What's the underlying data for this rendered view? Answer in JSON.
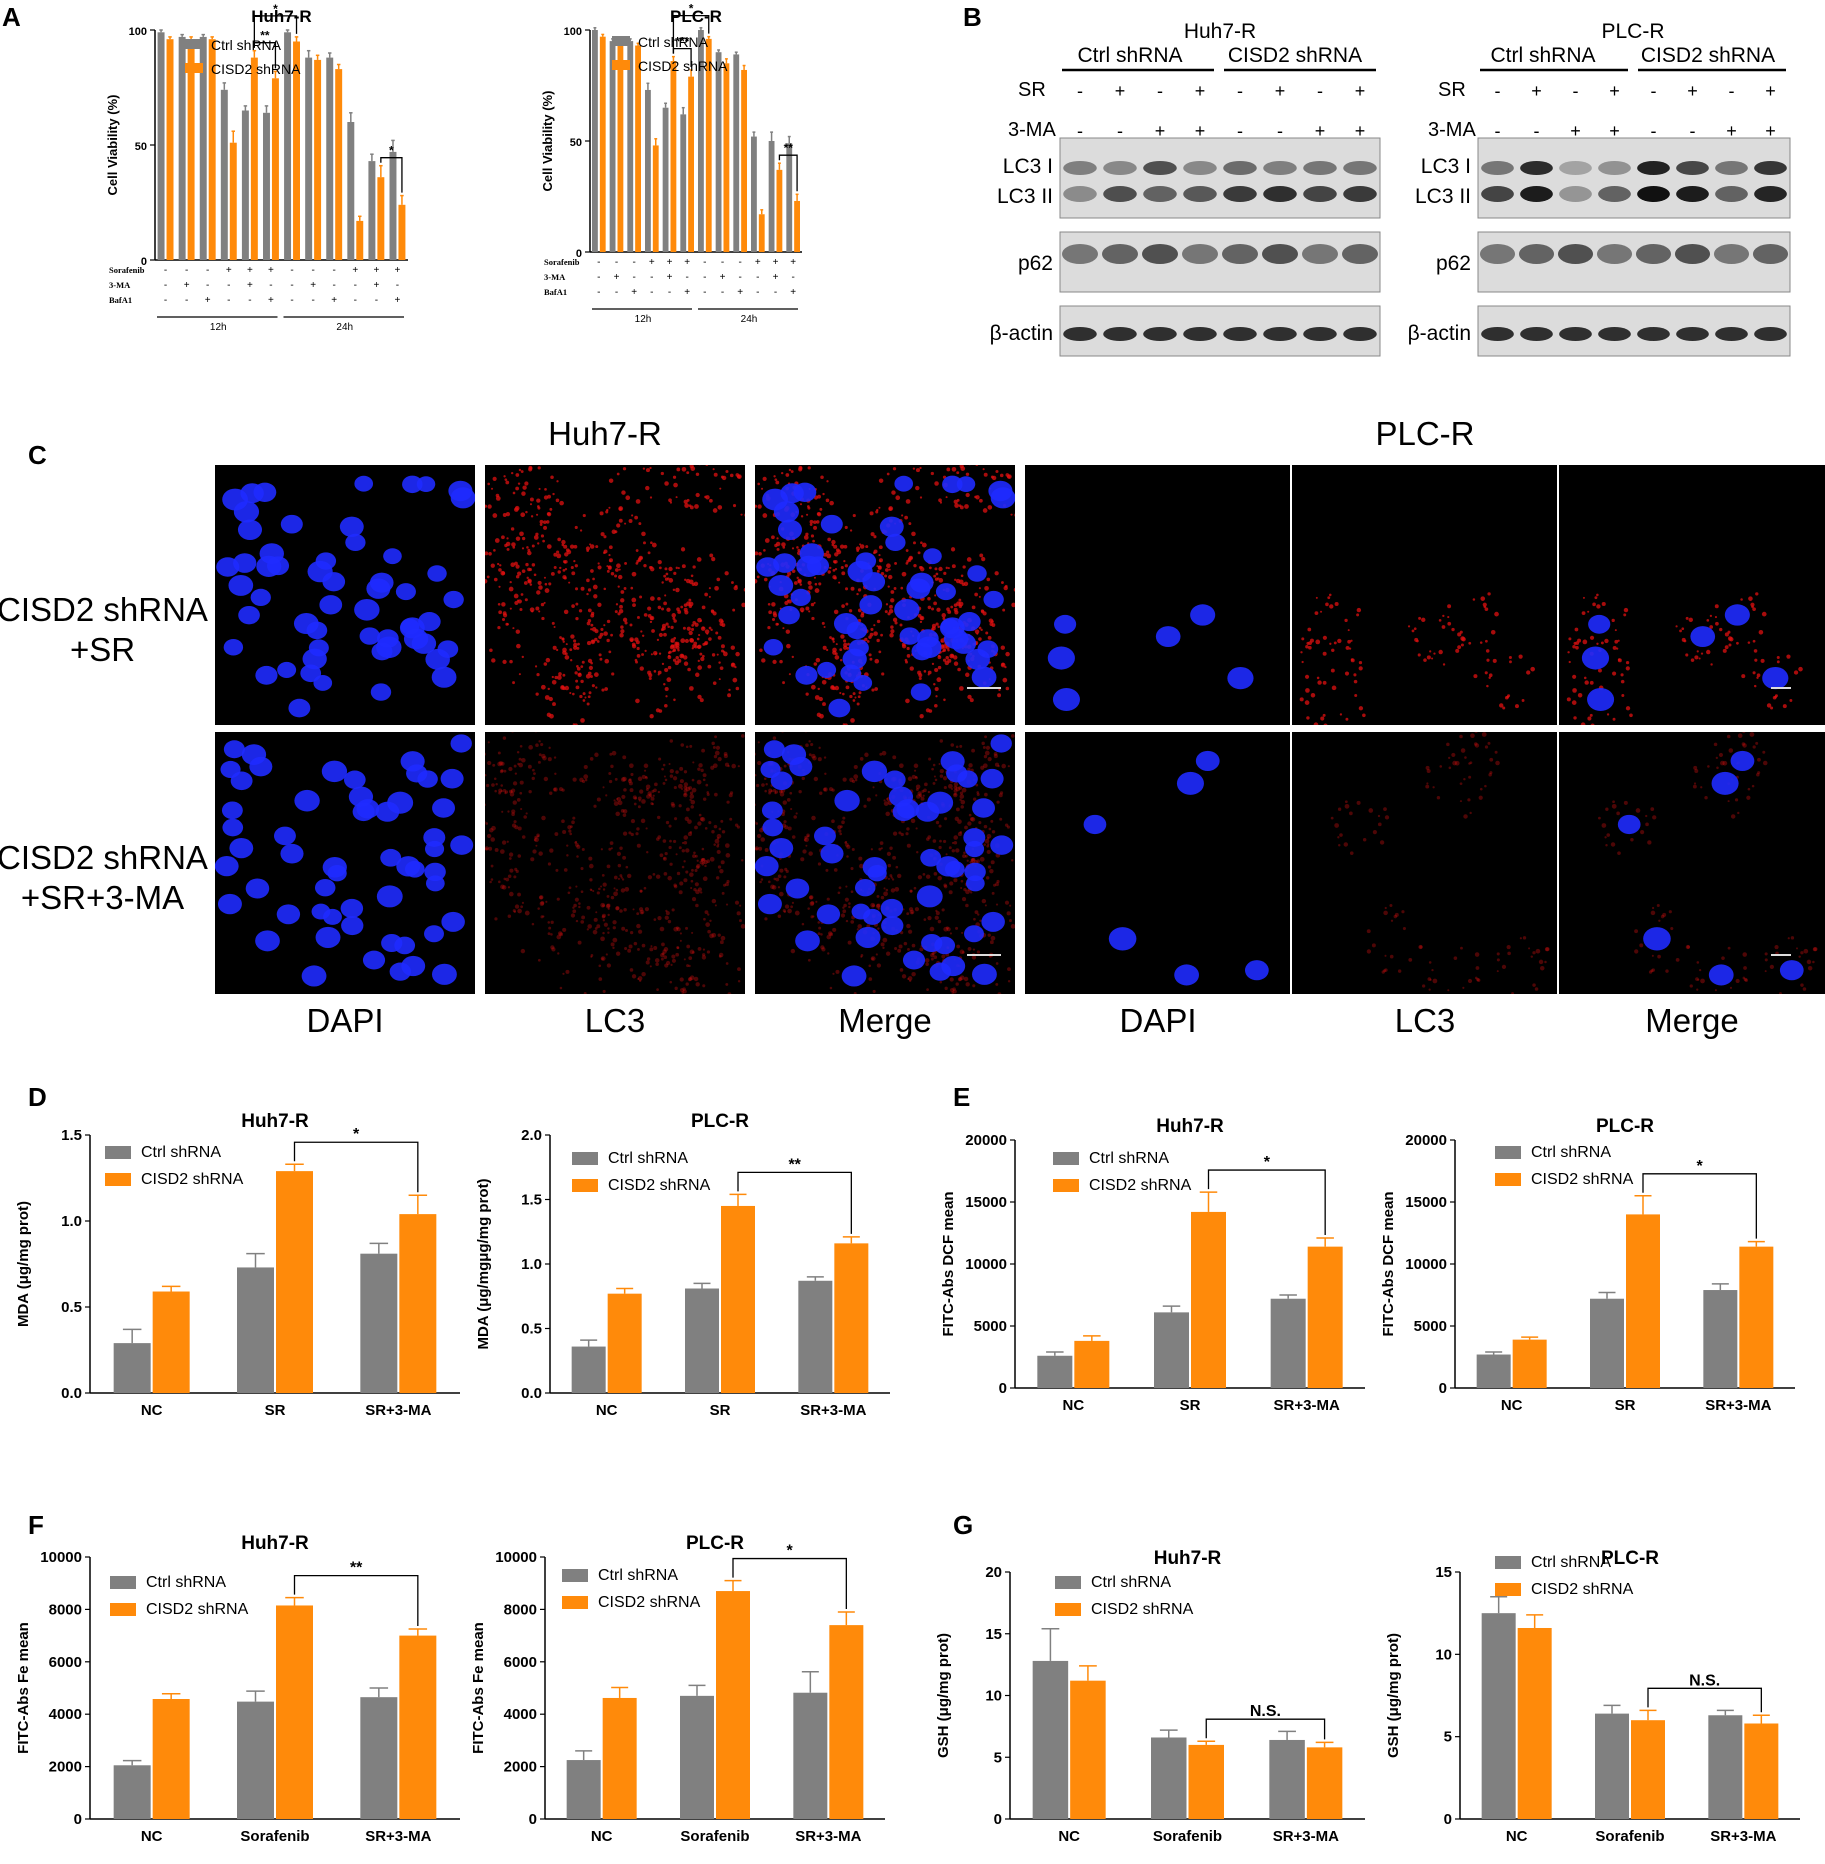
{
  "colors": {
    "ctrl": "#808080",
    "cisd2": "#ff8a0a",
    "dapi": "#1f2bff",
    "lc3": "#e01010"
  },
  "panel_letters": [
    "A",
    "B",
    "C",
    "D",
    "E",
    "F",
    "G"
  ],
  "panel_B": {
    "left_title": "Huh7-R",
    "right_title": "PLC-R",
    "group_labels": [
      "Ctrl shRNA",
      "CISD2 shRNA"
    ],
    "row_labels": [
      "SR",
      "3-MA"
    ],
    "sr_signs": [
      "-",
      "+",
      "-",
      "+",
      "-",
      "+",
      "-",
      "+"
    ],
    "ma_signs": [
      "-",
      "-",
      "+",
      "+",
      "-",
      "-",
      "+",
      "+"
    ],
    "blot_labels": [
      "LC3 I",
      "LC3 II",
      "p62",
      "β-actin"
    ]
  },
  "panel_C": {
    "titles": [
      "Huh7-R",
      "PLC-R"
    ],
    "row_labels": [
      [
        "CISD2 shRNA",
        "+SR"
      ],
      [
        "CISD2 shRNA",
        "+SR+3-MA"
      ]
    ],
    "col_labels": [
      "DAPI",
      "LC3",
      "Merge",
      "DAPI",
      "LC3",
      "Merge"
    ]
  },
  "chart_data": [
    {
      "panel": "A",
      "type": "bar",
      "title": "Huh7-R",
      "ylabel": "Cell Viability (%)",
      "ylim": [
        0,
        100
      ],
      "yticks": [
        0,
        50,
        100
      ],
      "legend": [
        "Ctrl shRNA",
        "CISD2 shRNA"
      ],
      "condition_rows": {
        "labels": [
          "Sorafenib",
          "3-MA",
          "BafA1"
        ],
        "signs": [
          [
            "-",
            "-",
            "-",
            "+",
            "+",
            "+",
            "-",
            "-",
            "-",
            "+",
            "+",
            "+"
          ],
          [
            "-",
            "+",
            "-",
            "-",
            "+",
            "-",
            "-",
            "+",
            "-",
            "-",
            "+",
            "-"
          ],
          [
            "-",
            "-",
            "+",
            "-",
            "-",
            "+",
            "-",
            "-",
            "+",
            "-",
            "-",
            "+"
          ]
        ]
      },
      "time_labels": [
        "12h",
        "24h"
      ],
      "series": [
        {
          "name": "Ctrl shRNA",
          "values": [
            99,
            97,
            97,
            74,
            65,
            64,
            99,
            88,
            88,
            60,
            43,
            47
          ],
          "errors": [
            1,
            1,
            1,
            3,
            2,
            3,
            1,
            3,
            2,
            4,
            3,
            5
          ]
        },
        {
          "name": "CISD2 shRNA",
          "values": [
            96,
            96,
            96,
            51,
            88,
            79,
            95,
            87,
            83,
            17,
            36,
            24
          ],
          "errors": [
            1,
            1,
            1,
            5,
            3,
            3,
            2,
            2,
            2,
            2,
            5,
            4
          ]
        }
      ],
      "significance": [
        {
          "a": 4,
          "b": 5,
          "series": 1,
          "label": "**"
        },
        {
          "a": 4,
          "b": 6,
          "series": 1,
          "label": "*"
        },
        {
          "a": 10,
          "b": 11,
          "series": 1,
          "label": "*"
        }
      ]
    },
    {
      "panel": "A",
      "type": "bar",
      "title": "PLC-R",
      "ylabel": "Cell Viability (%)",
      "ylim": [
        0,
        100
      ],
      "yticks": [
        0,
        50,
        100
      ],
      "legend": [
        "Ctrl shRNA",
        "CISD2 shRNA"
      ],
      "condition_rows": {
        "labels": [
          "Sorafenib",
          "3-MA",
          "BafA1"
        ],
        "signs": [
          [
            "-",
            "-",
            "-",
            "+",
            "+",
            "+",
            "-",
            "-",
            "-",
            "+",
            "+",
            "+"
          ],
          [
            "-",
            "+",
            "-",
            "-",
            "+",
            "-",
            "-",
            "+",
            "-",
            "-",
            "+",
            "-"
          ],
          [
            "-",
            "-",
            "+",
            "-",
            "-",
            "+",
            "-",
            "-",
            "+",
            "-",
            "-",
            "+"
          ]
        ]
      },
      "time_labels": [
        "12h",
        "24h"
      ],
      "series": [
        {
          "name": "Ctrl shRNA",
          "values": [
            100,
            95,
            95,
            73,
            65,
            62,
            100,
            90,
            89,
            52,
            50,
            49
          ],
          "errors": [
            1,
            1,
            1,
            3,
            2,
            3,
            1,
            1,
            1,
            2,
            4,
            3
          ]
        },
        {
          "name": "CISD2 shRNA",
          "values": [
            97,
            95,
            93,
            48,
            86,
            79,
            96,
            85,
            82,
            17,
            37,
            23
          ],
          "errors": [
            1,
            1,
            1,
            3,
            2,
            3,
            1,
            2,
            2,
            2,
            3,
            3
          ]
        }
      ],
      "significance": [
        {
          "a": 4,
          "b": 5,
          "series": 1,
          "label": "***"
        },
        {
          "a": 4,
          "b": 6,
          "series": 1,
          "label": "*"
        },
        {
          "a": 10,
          "b": 11,
          "series": 1,
          "label": "**"
        }
      ]
    },
    {
      "panel": "D",
      "type": "bar",
      "title": "Huh7-R",
      "ylabel": "MDA (μg/mg prot)",
      "ylim": [
        0,
        1.5
      ],
      "yticks": [
        "0.0",
        "0.5",
        "1.0",
        "1.5"
      ],
      "categories": [
        "NC",
        "SR",
        "SR+3-MA"
      ],
      "legend": [
        "Ctrl shRNA",
        "CISD2 shRNA"
      ],
      "series": [
        {
          "name": "Ctrl shRNA",
          "values": [
            0.29,
            0.73,
            0.81
          ],
          "errors": [
            0.08,
            0.08,
            0.06
          ]
        },
        {
          "name": "CISD2 shRNA",
          "values": [
            0.59,
            1.29,
            1.04
          ],
          "errors": [
            0.03,
            0.04,
            0.11
          ]
        }
      ],
      "significance": [
        {
          "a": 1,
          "b": 2,
          "label": "*"
        }
      ]
    },
    {
      "panel": "D",
      "type": "bar",
      "title": "PLC-R",
      "ylabel": "MDA (μg/mgμg/mg prot)",
      "ylim": [
        0,
        2.0
      ],
      "yticks": [
        "0.0",
        "0.5",
        "1.0",
        "1.5",
        "2.0"
      ],
      "categories": [
        "NC",
        "SR",
        "SR+3-MA"
      ],
      "legend": [
        "Ctrl shRNA",
        "CISD2 shRNA"
      ],
      "series": [
        {
          "name": "Ctrl shRNA",
          "values": [
            0.36,
            0.81,
            0.87
          ],
          "errors": [
            0.05,
            0.04,
            0.03
          ]
        },
        {
          "name": "CISD2 shRNA",
          "values": [
            0.77,
            1.45,
            1.16
          ],
          "errors": [
            0.04,
            0.09,
            0.05
          ]
        }
      ],
      "significance": [
        {
          "a": 1,
          "b": 2,
          "label": "**"
        }
      ]
    },
    {
      "panel": "E",
      "type": "bar",
      "title": "Huh7-R",
      "ylabel": "FITC-Abs DCF mean",
      "ylim": [
        0,
        20000
      ],
      "yticks": [
        "0",
        "5000",
        "10000",
        "15000",
        "20000"
      ],
      "categories": [
        "NC",
        "SR",
        "SR+3-MA"
      ],
      "legend": [
        "Ctrl shRNA",
        "CISD2 shRNA"
      ],
      "series": [
        {
          "name": "Ctrl shRNA",
          "values": [
            2600,
            6100,
            7200
          ],
          "errors": [
            300,
            500,
            300
          ]
        },
        {
          "name": "CISD2 shRNA",
          "values": [
            3800,
            14200,
            11400
          ],
          "errors": [
            400,
            1600,
            700
          ]
        }
      ],
      "significance": [
        {
          "a": 1,
          "b": 2,
          "label": "*"
        }
      ]
    },
    {
      "panel": "E",
      "type": "bar",
      "title": "PLC-R",
      "ylabel": "FITC-Abs DCF mean",
      "ylim": [
        0,
        20000
      ],
      "yticks": [
        "0",
        "5000",
        "10000",
        "15000",
        "20000"
      ],
      "categories": [
        "NC",
        "SR",
        "SR+3-MA"
      ],
      "legend": [
        "Ctrl shRNA",
        "CISD2 shRNA"
      ],
      "series": [
        {
          "name": "Ctrl shRNA",
          "values": [
            2700,
            7200,
            7900
          ],
          "errors": [
            200,
            500,
            500
          ]
        },
        {
          "name": "CISD2 shRNA",
          "values": [
            3900,
            14000,
            11400
          ],
          "errors": [
            200,
            1500,
            400
          ]
        }
      ],
      "significance": [
        {
          "a": 1,
          "b": 2,
          "label": "*"
        }
      ]
    },
    {
      "panel": "F",
      "type": "bar",
      "title": "Huh7-R",
      "ylabel": "FITC-Abs Fe mean",
      "ylim": [
        0,
        10000
      ],
      "yticks": [
        "0",
        "2000",
        "4000",
        "6000",
        "8000",
        "10000"
      ],
      "categories": [
        "NC",
        "Sorafenib",
        "SR+3-MA"
      ],
      "legend": [
        "Ctrl shRNA",
        "CISD2 shRNA"
      ],
      "series": [
        {
          "name": "Ctrl shRNA",
          "values": [
            2050,
            4480,
            4650
          ],
          "errors": [
            180,
            400,
            350
          ]
        },
        {
          "name": "CISD2 shRNA",
          "values": [
            4580,
            8150,
            7000
          ],
          "errors": [
            200,
            300,
            250
          ]
        }
      ],
      "significance": [
        {
          "a": 1,
          "b": 2,
          "label": "**"
        }
      ]
    },
    {
      "panel": "F",
      "type": "bar",
      "title": "PLC-R",
      "ylabel": "FITC-Abs Fe mean",
      "ylim": [
        0,
        10000
      ],
      "yticks": [
        "0",
        "2000",
        "4000",
        "6000",
        "8000",
        "10000"
      ],
      "categories": [
        "NC",
        "Sorafenib",
        "SR+3-MA"
      ],
      "legend": [
        "Ctrl shRNA",
        "CISD2 shRNA"
      ],
      "series": [
        {
          "name": "Ctrl shRNA",
          "values": [
            2250,
            4700,
            4820
          ],
          "errors": [
            350,
            400,
            800
          ]
        },
        {
          "name": "CISD2 shRNA",
          "values": [
            4620,
            8700,
            7400
          ],
          "errors": [
            400,
            400,
            500
          ]
        }
      ],
      "significance": [
        {
          "a": 1,
          "b": 2,
          "label": "*"
        }
      ]
    },
    {
      "panel": "G",
      "type": "bar",
      "title": "Huh7-R",
      "ylabel": "GSH (μg/mg prot)",
      "ylim": [
        0,
        20
      ],
      "yticks": [
        "0",
        "5",
        "10",
        "15",
        "20"
      ],
      "categories": [
        "NC",
        "Sorafenib",
        "SR+3-MA"
      ],
      "legend": [
        "Ctrl shRNA",
        "CISD2 shRNA"
      ],
      "series": [
        {
          "name": "Ctrl shRNA",
          "values": [
            12.8,
            6.6,
            6.4
          ],
          "errors": [
            2.6,
            0.6,
            0.7
          ]
        },
        {
          "name": "CISD2 shRNA",
          "values": [
            11.2,
            6.0,
            5.8
          ],
          "errors": [
            1.2,
            0.3,
            0.4
          ]
        }
      ],
      "significance": [
        {
          "a": 1,
          "b": 2,
          "label": "N.S."
        }
      ]
    },
    {
      "panel": "G",
      "type": "bar",
      "title": "PLC-R",
      "ylabel": "GSH (μg/mg prot)",
      "ylim": [
        0,
        15
      ],
      "yticks": [
        "0",
        "5",
        "10",
        "15"
      ],
      "categories": [
        "NC",
        "Sorafenib",
        "SR+3-MA"
      ],
      "legend": [
        "Ctrl shRNA",
        "CISD2 shRNA"
      ],
      "series": [
        {
          "name": "Ctrl shRNA",
          "values": [
            12.5,
            6.4,
            6.3
          ],
          "errors": [
            1.0,
            0.5,
            0.3
          ]
        },
        {
          "name": "CISD2 shRNA",
          "values": [
            11.6,
            6.0,
            5.8
          ],
          "errors": [
            0.8,
            0.6,
            0.5
          ]
        }
      ],
      "significance": [
        {
          "a": 1,
          "b": 2,
          "label": "N.S."
        }
      ]
    }
  ]
}
